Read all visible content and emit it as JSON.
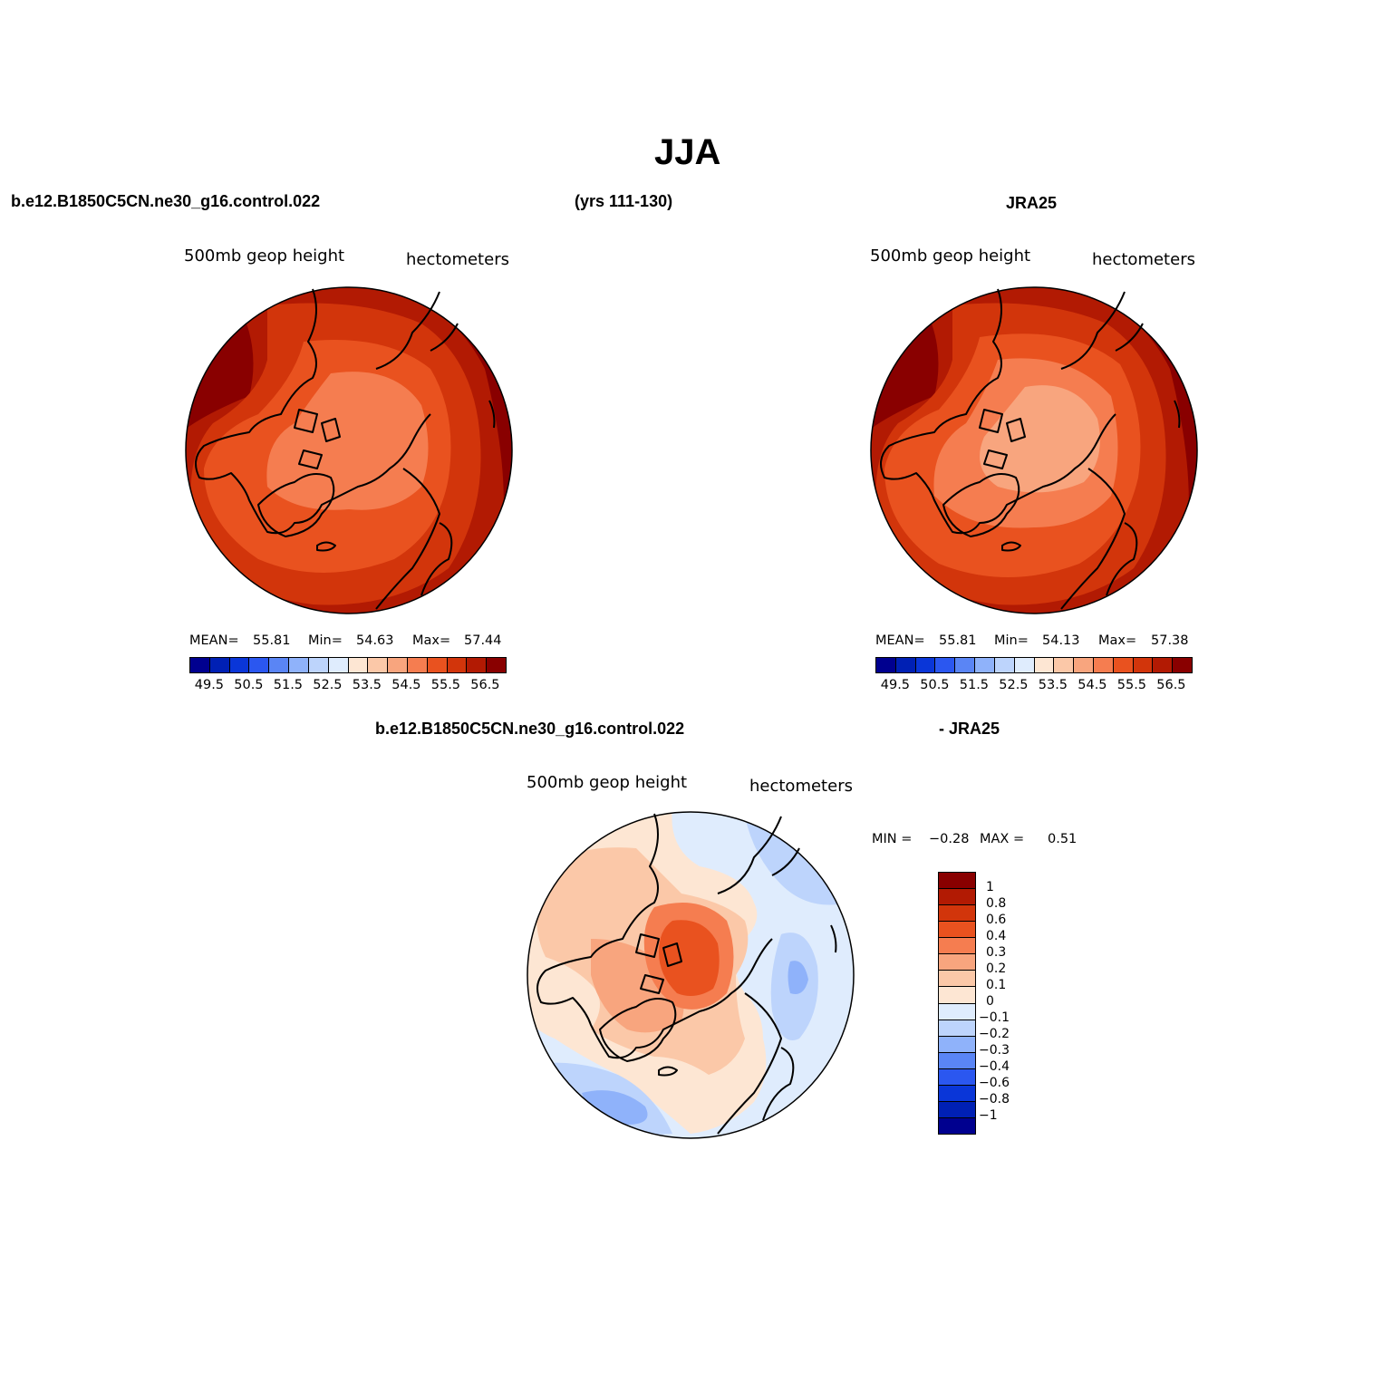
{
  "title": "JJA",
  "top_left_header": "b.e12.B1850C5CN.ne30_g16.control.022",
  "top_center_header": "(yrs 111-130)",
  "top_right_header": "JRA25",
  "bottom_header_left": "b.e12.B1850C5CN.ne30_g16.control.022",
  "bottom_header_right": "- JRA25",
  "panels": {
    "model": {
      "variable": "500mb  geop height",
      "units": "hectometers",
      "stats": {
        "mean_label": "MEAN=",
        "mean": "55.81",
        "min_label": "Min=",
        "min": "54.63",
        "max_label": "Max=",
        "max": "57.44"
      }
    },
    "obs": {
      "variable": "500mb  geop height",
      "units": "hectometers",
      "stats": {
        "mean_label": "MEAN=",
        "mean": "55.81",
        "min_label": "Min=",
        "min": "54.13",
        "max_label": "Max=",
        "max": "57.38"
      }
    },
    "diff": {
      "variable": "500mb  geop height",
      "units": "hectometers",
      "stats": {
        "min_label": "MIN =",
        "min": "−0.28",
        "max_label": "MAX =",
        "max": "0.51"
      }
    }
  },
  "colorbar_abs": {
    "colors": [
      "#00008f",
      "#0020b4",
      "#0a36d8",
      "#2b57f0",
      "#5a85f5",
      "#8fb2fa",
      "#bdd4fc",
      "#dfecfd",
      "#fde6d3",
      "#fbc8a8",
      "#f8a57e",
      "#f57d50",
      "#e9521f",
      "#d2350b",
      "#b21a03",
      "#890000"
    ],
    "ticks": [
      "49.5",
      "50.5",
      "51.5",
      "52.5",
      "53.5",
      "54.5",
      "55.5",
      "56.5"
    ]
  },
  "colorbar_diff": {
    "colors": [
      "#890000",
      "#b21a03",
      "#d2350b",
      "#e9521f",
      "#f57d50",
      "#f8a57e",
      "#fbc8a8",
      "#fde6d3",
      "#dfecfd",
      "#bdd4fc",
      "#8fb2fa",
      "#5a85f5",
      "#2b57f0",
      "#0a36d8",
      "#0020b4",
      "#00008f"
    ],
    "ticks": [
      "1",
      "0.8",
      "0.6",
      "0.4",
      "0.3",
      "0.2",
      "0.1",
      "0",
      "−0.1",
      "−0.2",
      "−0.3",
      "−0.4",
      "−0.6",
      "−0.8",
      "−1"
    ]
  }
}
